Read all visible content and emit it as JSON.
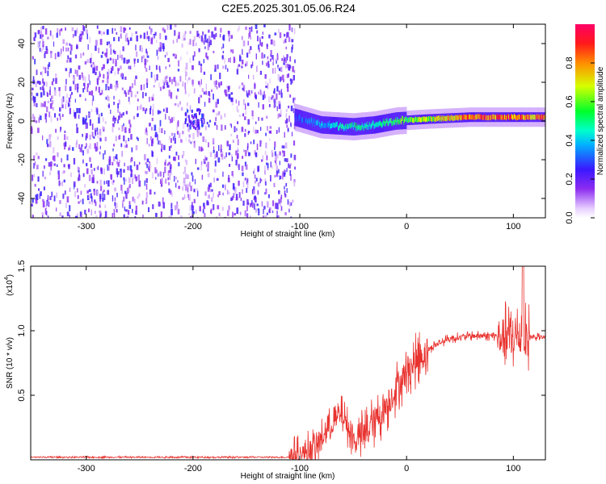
{
  "title": "C2E5.2025.301.05.06.R24",
  "chart_data": [
    {
      "type": "heatmap",
      "xlabel": "Height of straight line (km)",
      "ylabel": "Frequency (Hz)",
      "xlim": [
        -352,
        130
      ],
      "ylim": [
        -50,
        50
      ],
      "x_ticks": [
        "-300",
        "-200",
        "-100",
        "0",
        "100"
      ],
      "x_tick_values": [
        -300,
        -200,
        -100,
        0,
        100
      ],
      "y_ticks": [
        "-40",
        "-20",
        "0",
        "20",
        "40"
      ],
      "y_tick_values": [
        -40,
        -20,
        0,
        20,
        40
      ],
      "colorbar": {
        "label": "Normalized spectral amplitude",
        "range": [
          0,
          1
        ],
        "ticks": [
          "0.0",
          "0.2",
          "0.4",
          "0.6",
          "0.8"
        ],
        "tick_values": [
          0,
          0.2,
          0.4,
          0.6,
          0.8
        ],
        "colormap": "rainbow (white-purple-blue-cyan-green-yellow-red-magenta)"
      },
      "features": {
        "noise_region_x": [
          -352,
          -105
        ],
        "signal_band": [
          {
            "x": -105,
            "freq": 2,
            "amp": 0.3
          },
          {
            "x": -80,
            "freq": -2,
            "amp": 0.4
          },
          {
            "x": -50,
            "freq": -3,
            "amp": 0.5
          },
          {
            "x": -30,
            "freq": -2,
            "amp": 0.45
          },
          {
            "x": -10,
            "freq": 0,
            "amp": 0.6
          },
          {
            "x": 20,
            "freq": 1,
            "amp": 0.7
          },
          {
            "x": 60,
            "freq": 2,
            "amp": 0.9
          },
          {
            "x": 100,
            "freq": 2,
            "amp": 0.9
          },
          {
            "x": 130,
            "freq": 2,
            "amp": 0.85
          }
        ],
        "hot_spot": {
          "x": -200,
          "freq": 2,
          "amp": 0.3
        }
      }
    },
    {
      "type": "line",
      "xlabel": "Height of straight line (km)",
      "ylabel": "SNR (10 * v/v)",
      "y_multiplier": "(x10",
      "y_multiplier_exp": "4",
      "xlim": [
        -352,
        130
      ],
      "ylim": [
        0,
        1.5
      ],
      "x_ticks": [
        "-300",
        "-200",
        "-100",
        "0",
        "100"
      ],
      "x_tick_values": [
        -300,
        -200,
        -100,
        0,
        100
      ],
      "y_ticks": [
        "0.5",
        "1.0",
        "1.5"
      ],
      "y_tick_values": [
        0.5,
        1.0,
        1.5
      ],
      "series_color": "#e8322e",
      "envelope": [
        {
          "x": -352,
          "y": 0.02
        },
        {
          "x": -110,
          "y": 0.02
        },
        {
          "x": -100,
          "y": 0.04
        },
        {
          "x": -85,
          "y": 0.1
        },
        {
          "x": -70,
          "y": 0.28
        },
        {
          "x": -60,
          "y": 0.35
        },
        {
          "x": -50,
          "y": 0.15
        },
        {
          "x": -40,
          "y": 0.2
        },
        {
          "x": -30,
          "y": 0.3
        },
        {
          "x": -20,
          "y": 0.4
        },
        {
          "x": -10,
          "y": 0.55
        },
        {
          "x": 0,
          "y": 0.68
        },
        {
          "x": 10,
          "y": 0.78
        },
        {
          "x": 25,
          "y": 0.88
        },
        {
          "x": 40,
          "y": 0.94
        },
        {
          "x": 60,
          "y": 0.96
        },
        {
          "x": 85,
          "y": 0.96
        },
        {
          "x": 100,
          "y": 0.95
        },
        {
          "x": 130,
          "y": 0.95
        }
      ]
    }
  ]
}
